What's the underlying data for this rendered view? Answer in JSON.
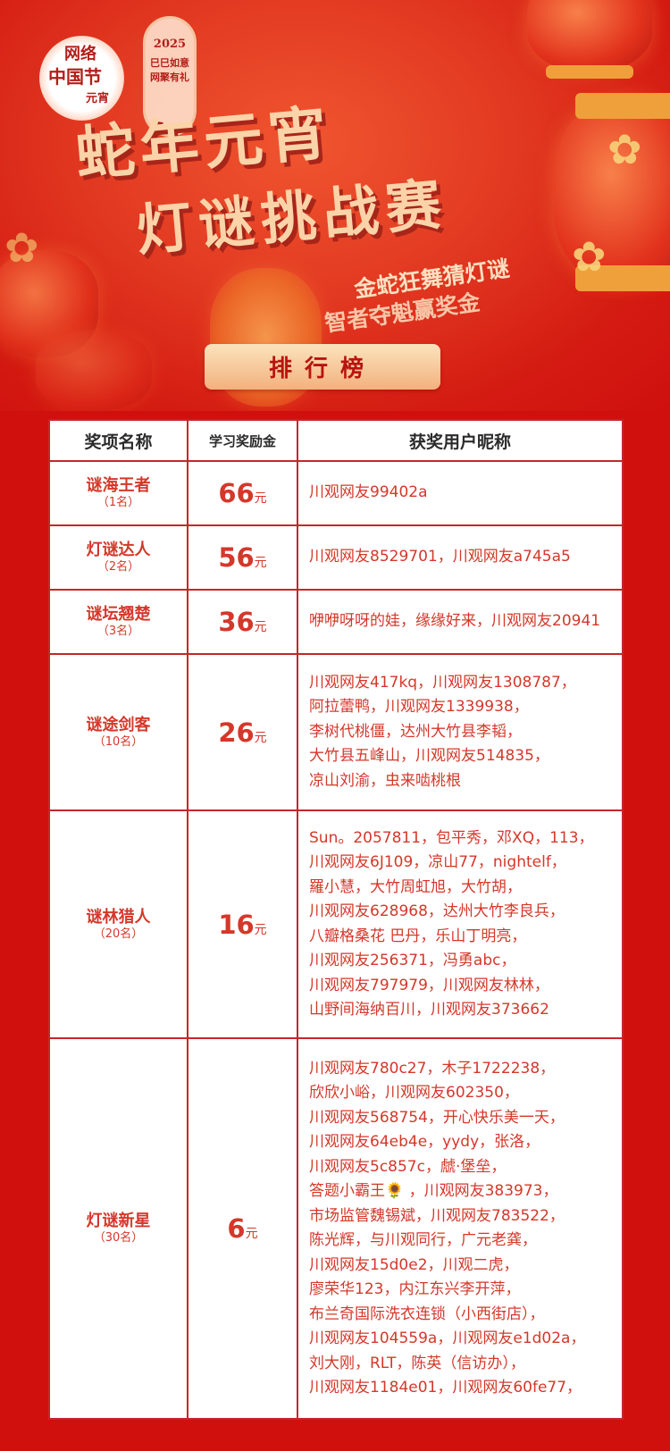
{
  "banner": {
    "logo_left": {
      "line1": "网络",
      "line2": "中国节",
      "line3": "元宵"
    },
    "logo_right": {
      "year": "2025",
      "line1": "巳巳如意",
      "line2": "网聚有礼"
    },
    "title_line1": "蛇年元宵",
    "title_line2": "灯谜挑战赛",
    "subtitle_line1": "金蛇狂舞猜灯谜",
    "subtitle_line2": "智者夺魁赢奖金"
  },
  "ranking_button": "排行榜",
  "table": {
    "headers": [
      "奖项名称",
      "学习奖励金",
      "获奖用户昵称"
    ],
    "currency": "元",
    "rows": [
      {
        "award": "谜海王者",
        "count": "（1名）",
        "amount": "66",
        "winners": [
          "川观网友99402a"
        ]
      },
      {
        "award": "灯谜达人",
        "count": "（2名）",
        "amount": "56",
        "winners": [
          "川观网友8529701，川观网友a745a5"
        ]
      },
      {
        "award": "谜坛翘楚",
        "count": "（3名）",
        "amount": "36",
        "winners": [
          "咿咿呀呀的娃，缘缘好来，川观网友20941"
        ]
      },
      {
        "award": "谜途剑客",
        "count": "（10名）",
        "amount": "26",
        "winners": [
          "川观网友417kq，川观网友1308787，",
          "阿拉蕾鸭，川观网友1339938，",
          "李树代桃僵，达州大竹县李韬，",
          "大竹县五峰山，川观网友514835，",
          "凉山刘渝，虫来啮桃根"
        ]
      },
      {
        "award": "谜林猎人",
        "count": "（20名）",
        "amount": "16",
        "winners": [
          "Sun。2057811，包平秀，邓XQ，113，",
          "川观网友6J109，凉山77，nightelf，",
          "羅小慧，大竹周虹旭，大竹胡，",
          "川观网友628968，达州大竹李良兵，",
          "八瓣格桑花  巴丹，乐山丁明亮，",
          "川观网友256371，冯勇abc，",
          "川观网友797979，川观网友林林，",
          "山野间海纳百川，川观网友373662"
        ]
      },
      {
        "award": "灯谜新星",
        "count": "（30名）",
        "amount": "6",
        "winners": [
          "川观网友780c27，木子1722238，",
          "欣欣小峪，川观网友602350，",
          "川观网友568754，开心快乐美一天，",
          "川观网友64eb4e，yydy，张洛，",
          "川观网友5c857c，虤·堡垒，",
          "答题小霸王🌻 ，川观网友383973，",
          "市场监管魏锡斌，川观网友783522，",
          "陈光辉，与川观同行，广元老龚，",
          "川观网友15d0e2，川观二虎，",
          "廖荣华123，内江东兴李开萍，",
          "布兰奇国际洗衣连锁（小西街店），",
          "川观网友104559a，川观网友e1d02a，",
          "刘大刚，RLT，陈英（信访办），",
          "川观网友1184e01，川观网友60fe77，"
        ]
      }
    ]
  },
  "colors": {
    "background": "#cf100d",
    "accent_text": "#d4382a",
    "border": "#c8252a",
    "title": "#fbd3a8"
  }
}
